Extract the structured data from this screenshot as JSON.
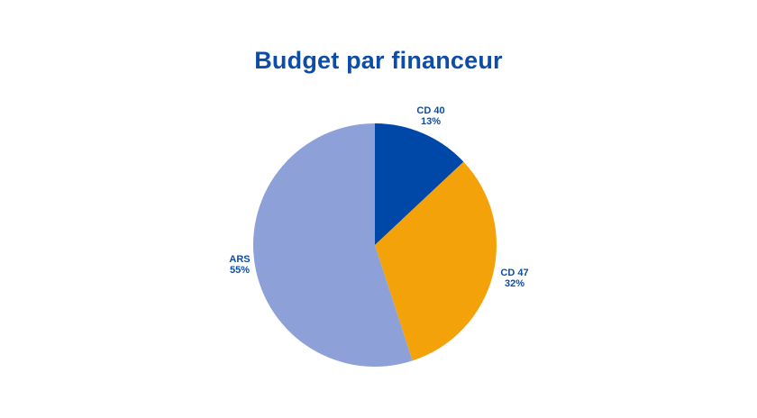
{
  "chart_data": {
    "type": "pie",
    "title": "Budget par financeur",
    "slices": [
      {
        "name": "CD 40",
        "value": 13,
        "label": "13%",
        "color": "#0048A8"
      },
      {
        "name": "CD 47",
        "value": 32,
        "label": "32%",
        "color": "#F4A20A"
      },
      {
        "name": "ARS",
        "value": 55,
        "label": "55%",
        "color": "#8EA0D8"
      }
    ],
    "label_color": "#0D4DA8",
    "start_angle": "12 o'clock",
    "direction": "clockwise",
    "legend": "none"
  }
}
